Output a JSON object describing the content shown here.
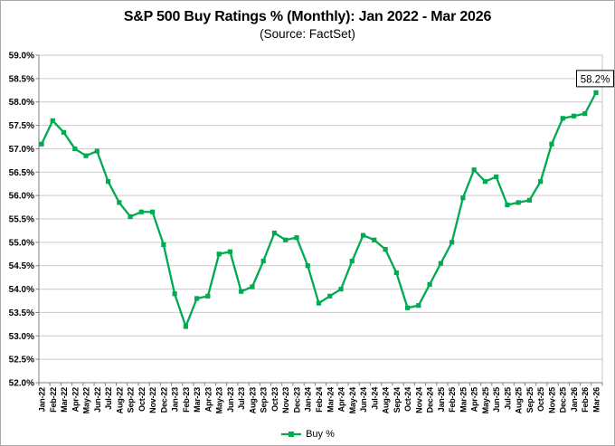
{
  "header": {
    "title": "S&P 500 Buy Ratings % (Monthly): Jan 2022 - Mar 2026",
    "subtitle": "(Source: FactSet)"
  },
  "chart_data": {
    "type": "line",
    "title": "S&P 500 Buy Ratings % (Monthly): Jan 2022 - Mar 2026",
    "subtitle": "(Source: FactSet)",
    "x": [
      "Jan-22",
      "Feb-22",
      "Mar-22",
      "Apr-22",
      "May-22",
      "Jun-22",
      "Jul-22",
      "Aug-22",
      "Sep-22",
      "Oct-22",
      "Nov-22",
      "Dec-22",
      "Jan-23",
      "Feb-23",
      "Mar-23",
      "Apr-23",
      "May-23",
      "Jun-23",
      "Jul-23",
      "Aug-23",
      "Sep-23",
      "Oct-23",
      "Nov-23",
      "Dec-23",
      "Jan-24",
      "Feb-24",
      "Mar-24",
      "Apr-24",
      "May-24",
      "Jun-24",
      "Jul-24",
      "Aug-24",
      "Sep-24",
      "Oct-24",
      "Nov-24",
      "Dec-24",
      "Jan-25",
      "Feb-25",
      "Mar-25",
      "Apr-25",
      "May-25",
      "Jun-25",
      "Jul-25",
      "Aug-25",
      "Sep-25",
      "Oct-25",
      "Nov-25",
      "Dec-25",
      "Jan-26",
      "Feb-26",
      "Mar-26"
    ],
    "series": [
      {
        "name": "Buy %",
        "color": "#00AA50",
        "values": [
          57.1,
          57.6,
          57.35,
          57.0,
          56.85,
          56.95,
          56.3,
          55.85,
          55.55,
          55.65,
          55.65,
          54.95,
          53.9,
          53.2,
          53.8,
          53.85,
          54.75,
          54.8,
          53.95,
          54.05,
          54.6,
          55.2,
          55.05,
          55.1,
          54.5,
          53.7,
          53.85,
          54.0,
          54.6,
          55.15,
          55.05,
          54.85,
          54.35,
          53.6,
          53.65,
          54.1,
          54.55,
          55.0,
          55.95,
          56.55,
          56.3,
          56.4,
          55.8,
          55.85,
          55.9,
          56.3,
          57.1,
          57.65,
          57.7,
          57.75,
          58.2
        ]
      }
    ],
    "ylim": [
      52.0,
      59.0
    ],
    "ytick_step": 0.5,
    "ytick_suffix": "%",
    "grid": "horizontal",
    "legend_position": "bottom",
    "annotation": {
      "text": "58.2%"
    }
  },
  "colors": {
    "line": "#00AA50",
    "gridline": "#c9c9c9",
    "axis": "#7f7f7f",
    "text": "#000000",
    "annotation_border": "#000000",
    "annotation_fill": "#ffffff"
  }
}
